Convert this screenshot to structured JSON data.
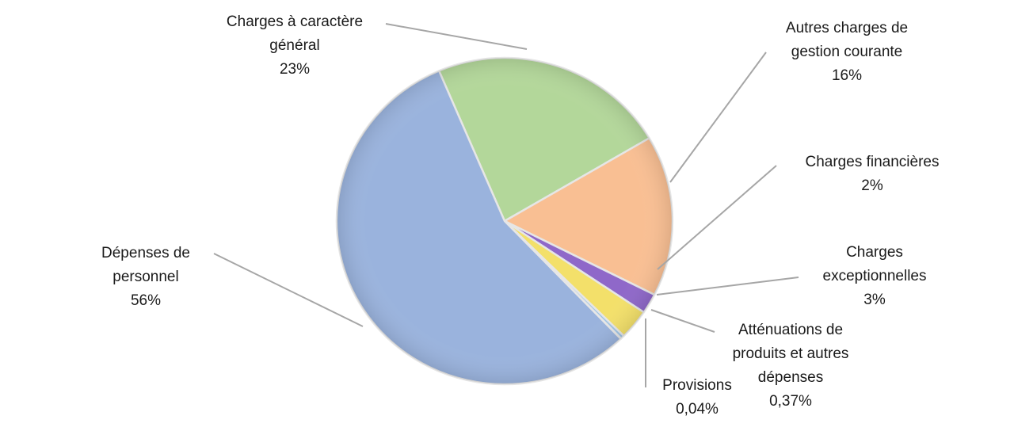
{
  "chart_data": {
    "type": "pie",
    "title": "",
    "slices": [
      {
        "key": "charges-a-caractere-general",
        "label_lines": [
          "Charges à caractère",
          "général"
        ],
        "value_label": "23%",
        "value": 23,
        "color": "#b3d79a"
      },
      {
        "key": "autres-charges-de-gestion-courante",
        "label_lines": [
          "Autres charges de",
          "gestion courante"
        ],
        "value_label": "16%",
        "value": 16,
        "color": "#f9bf93"
      },
      {
        "key": "charges-financieres",
        "label_lines": [
          "Charges financières"
        ],
        "value_label": "2%",
        "value": 2,
        "color": "#8f68c9"
      },
      {
        "key": "charges-exceptionnelles",
        "label_lines": [
          "Charges",
          "exceptionnelles"
        ],
        "value_label": "3%",
        "value": 3,
        "color": "#f3e06a"
      },
      {
        "key": "attenuations-de-produits-et-autres-depenses",
        "label_lines": [
          "Atténuations de",
          "produits et autres",
          "dépenses"
        ],
        "value_label": "0,37%",
        "value": 0.37,
        "color": "#9dc3e6"
      },
      {
        "key": "provisions",
        "label_lines": [
          "Provisions"
        ],
        "value_label": "0,04%",
        "value": 0.04,
        "color": "#c0504d"
      },
      {
        "key": "depenses-de-personnel",
        "label_lines": [
          "Dépenses de",
          "personnel"
        ],
        "value_label": "56%",
        "value": 56,
        "color": "#9ab3dd"
      }
    ],
    "legend": "none"
  }
}
